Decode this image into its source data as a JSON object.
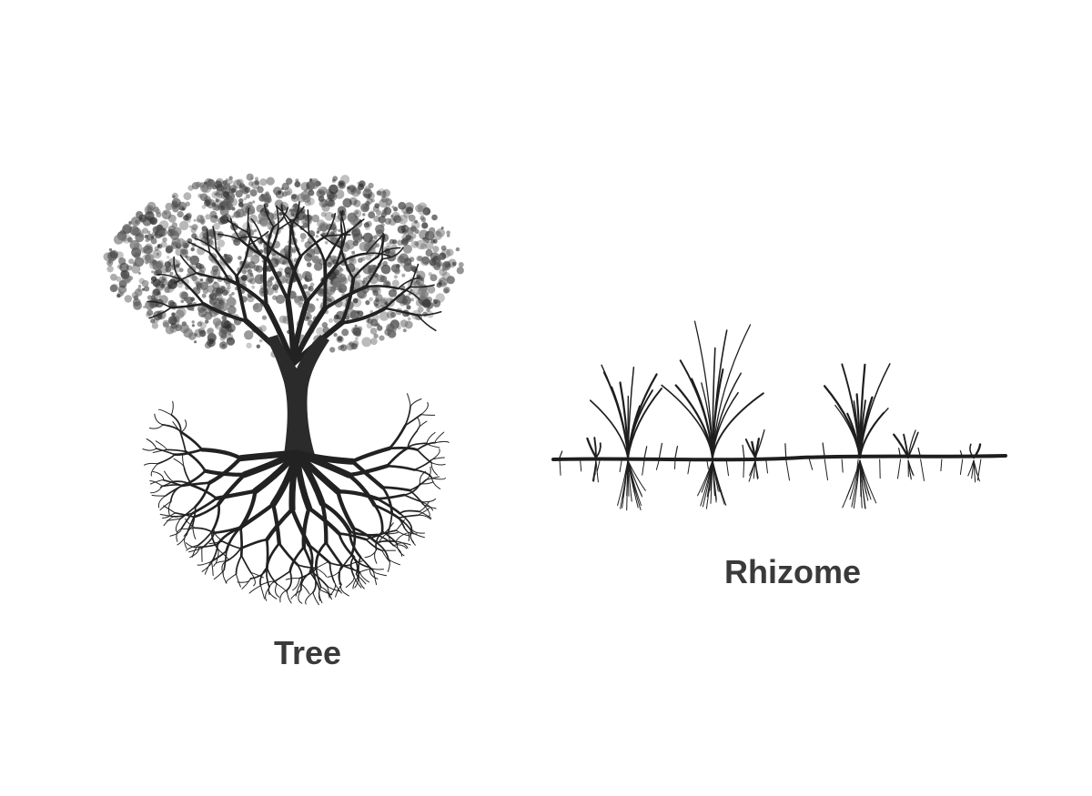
{
  "tree": {
    "label": "Tree",
    "icon": "tree-with-roots-illustration",
    "color": "#2a2a2a"
  },
  "rhizome": {
    "label": "Rhizome",
    "icon": "rhizome-grass-illustration",
    "color": "#1e1e1e"
  },
  "caption_color": "#3a3a3a"
}
